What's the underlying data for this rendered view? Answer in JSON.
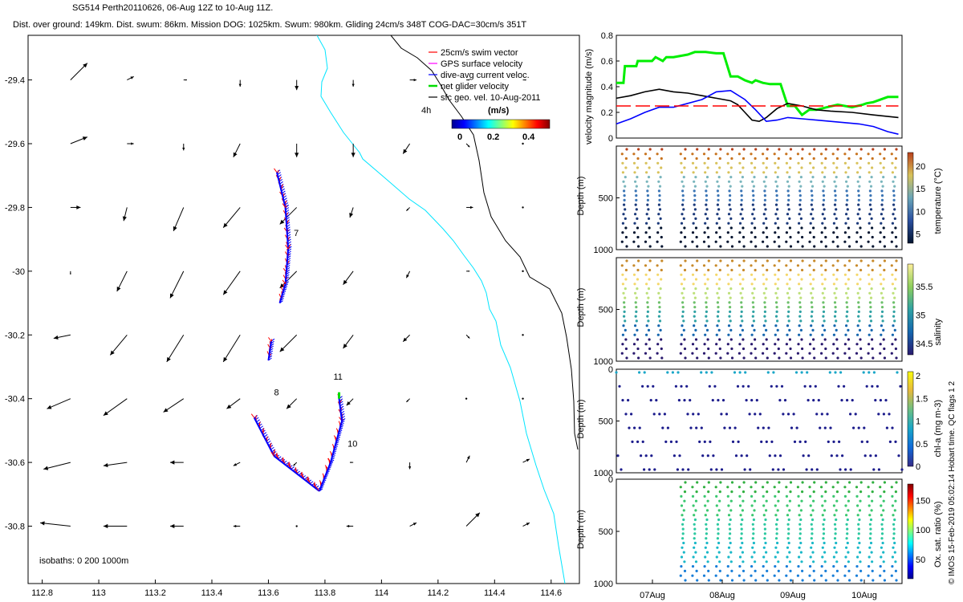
{
  "header": {
    "line1": "SG514 Perth20110626, 06-Aug 12Z to 10-Aug 11Z.",
    "line2": "Dist. over ground: 149km. Dist. swum: 86km. Mission DOG: 1025km. Swum: 980km. Gliding 24cm/s 348T COG-DAC=30cm/s 351T"
  },
  "credit": "© IMOS 15-Feb-2019 05:02:14 Hobart time. QC flags 1  2",
  "colors": {
    "coast": "#000000",
    "isobath": "#00e5ff",
    "swim": "#ff0000",
    "gps": "#ff00ff",
    "dac": "#0000ff",
    "net": "#00dd00",
    "geo": "#000000"
  },
  "chart_data": [
    {
      "type": "map",
      "name": "track-map",
      "xlim": [
        112.75,
        114.7
      ],
      "ylim": [
        -30.98,
        -29.26
      ],
      "xticks": [
        112.8,
        113,
        113.2,
        113.4,
        113.6,
        113.8,
        114,
        114.2,
        114.4,
        114.6
      ],
      "yticks": [
        -29.4,
        -29.6,
        -29.8,
        -30,
        -30.2,
        -30.4,
        -30.6,
        -30.8
      ],
      "legend": [
        "25cm/s swim vector",
        "GPS surface velocity",
        "dive-avg current veloc.",
        "net glider velocity",
        "sfc geo. vel. 10-Aug-2011"
      ],
      "legend_position": "top-right",
      "colorbar": {
        "label": "(m/s)",
        "ticks": [
          "0",
          "0.2",
          "0.4"
        ],
        "range": [
          0,
          0.5
        ]
      },
      "time_label": "4h",
      "isobath_label": "isobaths: 0   200  1000m",
      "day_labels": [
        {
          "text": "7",
          "lon": 113.69,
          "lat": -29.89
        },
        {
          "text": "8",
          "lon": 113.62,
          "lat": -30.39
        },
        {
          "text": "11",
          "lon": 113.83,
          "lat": -30.34
        },
        {
          "text": "10",
          "lon": 113.88,
          "lat": -30.55
        }
      ],
      "track": [
        [
          113.63,
          -29.69
        ],
        [
          113.66,
          -29.8
        ],
        [
          113.67,
          -29.93
        ],
        [
          113.66,
          -30.04
        ],
        [
          113.64,
          -30.1
        ],
        [
          113.61,
          -30.22
        ],
        [
          113.6,
          -30.28
        ],
        [
          113.55,
          -30.46
        ],
        [
          113.62,
          -30.58
        ],
        [
          113.78,
          -30.69
        ],
        [
          113.82,
          -30.6
        ],
        [
          113.86,
          -30.47
        ],
        [
          113.85,
          -30.4
        ]
      ],
      "geo_vectors": {
        "lons": [
          112.9,
          113.1,
          113.3,
          113.5,
          113.7,
          113.9,
          114.1,
          114.3,
          114.5
        ],
        "lats": [
          -29.4,
          -29.6,
          -29.8,
          -30.0,
          -30.2,
          -30.4,
          -30.6,
          -30.8
        ],
        "u": [
          [
            0.05,
            0.02,
            0.01,
            0.0,
            0.0,
            0.0,
            0.02,
            0.01,
            0.01
          ],
          [
            0.05,
            0.02,
            0.0,
            -0.02,
            0.0,
            0.0,
            -0.02,
            0.01,
            0.0
          ],
          [
            0.03,
            -0.01,
            -0.03,
            -0.05,
            -0.05,
            -0.01,
            -0.01,
            0.02,
            0.0
          ],
          [
            0.0,
            -0.03,
            -0.04,
            -0.05,
            -0.05,
            -0.03,
            -0.01,
            0.01,
            0.0
          ],
          [
            -0.05,
            -0.05,
            -0.05,
            -0.05,
            -0.05,
            -0.03,
            -0.02,
            0.01,
            0.0
          ],
          [
            -0.07,
            -0.07,
            -0.06,
            -0.04,
            -0.03,
            -0.02,
            -0.01,
            0.0,
            0.0
          ],
          [
            -0.08,
            -0.07,
            -0.04,
            -0.02,
            -0.01,
            -0.01,
            0.0,
            0.01,
            0.02
          ],
          [
            -0.09,
            -0.07,
            -0.04,
            -0.02,
            0.0,
            -0.02,
            0.02,
            0.04,
            0.02
          ]
        ],
        "v": [
          [
            0.05,
            0.01,
            0.0,
            -0.02,
            -0.03,
            -0.02,
            0.0,
            0.0,
            0.0
          ],
          [
            0.02,
            0.0,
            -0.02,
            -0.04,
            -0.04,
            -0.04,
            -0.03,
            -0.01,
            0.0
          ],
          [
            0.0,
            -0.04,
            -0.07,
            -0.06,
            -0.05,
            -0.03,
            -0.01,
            0.0,
            0.0
          ],
          [
            -0.01,
            -0.06,
            -0.08,
            -0.07,
            -0.05,
            -0.04,
            -0.02,
            0.0,
            0.0
          ],
          [
            -0.01,
            -0.06,
            -0.08,
            -0.08,
            -0.05,
            -0.04,
            -0.02,
            -0.01,
            0.0
          ],
          [
            -0.03,
            -0.05,
            -0.04,
            -0.03,
            -0.03,
            -0.02,
            -0.01,
            0.0,
            0.0
          ],
          [
            -0.02,
            -0.01,
            0.0,
            -0.01,
            -0.01,
            0.0,
            -0.02,
            0.02,
            0.01
          ],
          [
            0.01,
            0.0,
            0.0,
            0.0,
            0.0,
            0.0,
            0.01,
            0.04,
            0.01
          ]
        ]
      }
    },
    {
      "type": "line",
      "name": "velocity-panel",
      "ylabel": "velocity magnitude (m/s)",
      "x_range_days": [
        6.5,
        10.5
      ],
      "ylim": [
        0,
        0.8
      ],
      "yticks": [
        "0",
        "0.2",
        "0.4",
        "0.6",
        "0.8"
      ],
      "series": [
        {
          "color": "#00ee00",
          "x": [
            6.5,
            6.6,
            6.62,
            6.78,
            6.8,
            6.9,
            7.0,
            7.05,
            7.15,
            7.2,
            7.3,
            7.5,
            7.6,
            7.75,
            7.9,
            8.0,
            8.1,
            8.2,
            8.3,
            8.4,
            8.45,
            8.55,
            8.65,
            8.8,
            8.9,
            9.0,
            9.1,
            9.2,
            9.3,
            9.45,
            9.6,
            9.8,
            9.95,
            10.0,
            10.1,
            10.3,
            10.45
          ],
          "y": [
            0.43,
            0.43,
            0.56,
            0.56,
            0.6,
            0.6,
            0.6,
            0.63,
            0.6,
            0.63,
            0.63,
            0.65,
            0.67,
            0.67,
            0.66,
            0.66,
            0.48,
            0.48,
            0.45,
            0.43,
            0.45,
            0.43,
            0.42,
            0.42,
            0.25,
            0.25,
            0.18,
            0.22,
            0.22,
            0.24,
            0.26,
            0.24,
            0.26,
            0.27,
            0.28,
            0.32,
            0.32
          ]
        },
        {
          "color": "#000000",
          "x": [
            6.5,
            6.7,
            6.9,
            7.1,
            7.3,
            7.5,
            7.7,
            7.9,
            8.1,
            8.2,
            8.3,
            8.4,
            8.5,
            8.6,
            8.75,
            8.9,
            9.1,
            9.3,
            9.5,
            9.8,
            10.1,
            10.45
          ],
          "y": [
            0.31,
            0.33,
            0.36,
            0.38,
            0.36,
            0.35,
            0.33,
            0.31,
            0.29,
            0.26,
            0.2,
            0.14,
            0.13,
            0.16,
            0.23,
            0.27,
            0.25,
            0.22,
            0.21,
            0.2,
            0.18,
            0.16
          ]
        },
        {
          "color": "#0000ff",
          "x": [
            6.5,
            6.7,
            6.9,
            7.1,
            7.3,
            7.5,
            7.7,
            7.9,
            8.1,
            8.3,
            8.45,
            8.6,
            8.75,
            8.9,
            9.1,
            9.3,
            9.5,
            9.7,
            9.9,
            10.1,
            10.3,
            10.45
          ],
          "y": [
            0.11,
            0.15,
            0.2,
            0.24,
            0.24,
            0.27,
            0.3,
            0.36,
            0.37,
            0.3,
            0.22,
            0.13,
            0.14,
            0.16,
            0.15,
            0.14,
            0.13,
            0.12,
            0.11,
            0.09,
            0.05,
            0.03
          ]
        },
        {
          "color": "#ff0000",
          "x": [
            6.5,
            10.45
          ],
          "y": [
            0.25,
            0.25
          ]
        }
      ]
    },
    {
      "type": "scatter",
      "name": "temperature-panel",
      "ylabel": "Depth (m)",
      "yticks": [
        "500",
        "1000"
      ],
      "ylim": [
        0,
        1000
      ],
      "colorbar_label": "temperature (°C)",
      "colorbar_ticks": [
        "5",
        "10",
        "15",
        "20"
      ],
      "color_range": [
        3,
        23
      ]
    },
    {
      "type": "scatter",
      "name": "salinity-panel",
      "ylabel": "Depth (m)",
      "yticks": [
        "500",
        "1000"
      ],
      "ylim": [
        0,
        1000
      ],
      "colorbar_label": "salinity",
      "colorbar_ticks": [
        "34.5",
        "35",
        "35.5"
      ],
      "color_range": [
        34.3,
        35.9
      ]
    },
    {
      "type": "scatter",
      "name": "chla-panel",
      "ylabel": "Depth (m)",
      "yticks": [
        "0",
        "500",
        "1000"
      ],
      "ylim": [
        0,
        1000
      ],
      "colorbar_label": "chl-a (mg m-3)",
      "colorbar_ticks": [
        "0",
        "0.5",
        "1",
        "1.5",
        "2"
      ],
      "color_range": [
        0,
        2
      ]
    },
    {
      "type": "scatter",
      "name": "oxygen-panel",
      "ylabel": "Depth (m)",
      "yticks": [
        "0",
        "500",
        "1000"
      ],
      "ylim": [
        0,
        1000
      ],
      "colorbar_label": "Ox. sat. ratio (%)",
      "colorbar_ticks": [
        "50",
        "100",
        "150"
      ],
      "color_range": [
        20,
        175
      ]
    }
  ],
  "time_axis": [
    "07Aug",
    "08Aug",
    "09Aug",
    "10Aug"
  ]
}
